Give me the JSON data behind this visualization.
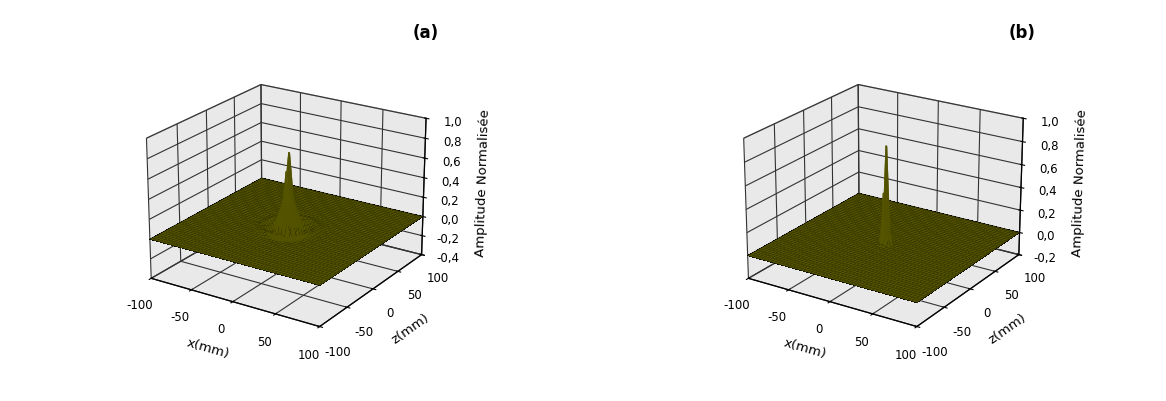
{
  "xlabel": "x(mm)",
  "zlabel_axis": "z(mm)",
  "ylabel": "Amplitude Normalisée",
  "label_a": "(a)",
  "label_b": "(b)",
  "ylim_a": [
    -0.4,
    1.0
  ],
  "ylim_b": [
    -0.2,
    1.0
  ],
  "yticks_a": [
    -0.4,
    -0.2,
    0.0,
    0.2,
    0.4,
    0.6,
    0.8,
    1.0
  ],
  "yticks_b": [
    -0.2,
    0.0,
    0.2,
    0.4,
    0.6,
    0.8,
    1.0
  ],
  "xticks": [
    -100,
    -50,
    0,
    50,
    100
  ],
  "zticks": [
    -100,
    -50,
    0,
    50,
    100
  ],
  "wall_color": "#d4d4d4",
  "floor_color": "#c8c8c8",
  "spike_color": "#6b6b00",
  "sigma_a": 3.5,
  "sigma_b": 2.5,
  "n_points": 100,
  "elev": 22,
  "azim": -57,
  "figsize": [
    11.66,
    4.01
  ],
  "dpi": 100
}
